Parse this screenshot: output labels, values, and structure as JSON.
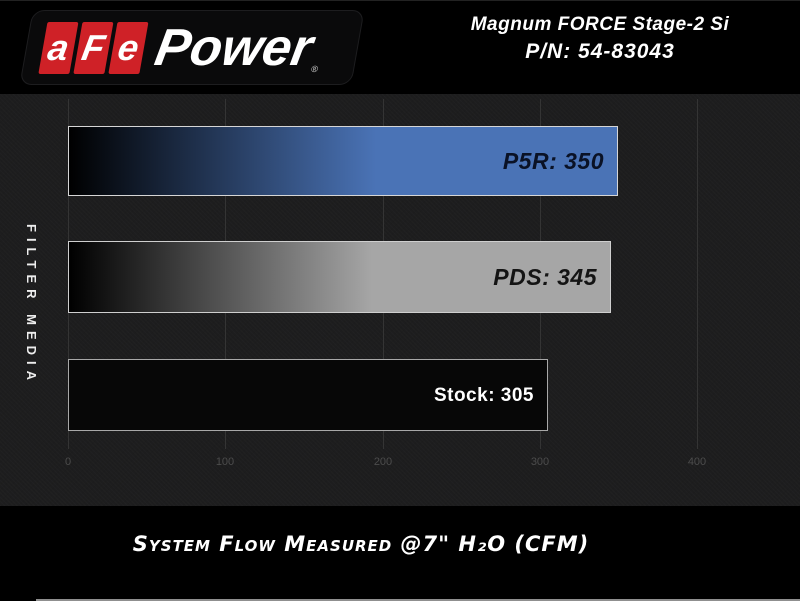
{
  "header": {
    "logo": {
      "blocks": [
        "a",
        "F",
        "e"
      ],
      "word": "Power",
      "registered": "®"
    },
    "title_line1": "Magnum FORCE Stage-2 Si",
    "title_line2": "P/N: 54-83043"
  },
  "chart_data": {
    "type": "bar",
    "orientation": "horizontal",
    "title": "",
    "ylabel": "FILTER MEDIA",
    "caption": "System Flow Measured @7\" H₂O (CFM)",
    "categories": [
      "P5R",
      "PDS",
      "Stock"
    ],
    "values": [
      350,
      345,
      305
    ],
    "xticks": [
      0,
      100,
      200,
      300,
      400
    ],
    "xlim": [
      0,
      440
    ],
    "grid": "vertical",
    "legend": "none",
    "bars": [
      {
        "id": "p5r",
        "name": "P5R",
        "value": 350,
        "label": "P5R: 350",
        "fill_from": "#000000",
        "fill_to": "#4a73b6",
        "border": "#d6d6d6",
        "label_color": "#0a1226",
        "label_italic": true
      },
      {
        "id": "pds",
        "name": "PDS",
        "value": 345,
        "label": "PDS: 345",
        "fill_from": "#000000",
        "fill_to": "#a6a6a6",
        "border": "#cfcfcf",
        "label_color": "#141414",
        "label_italic": true
      },
      {
        "id": "stock",
        "name": "Stock",
        "value": 305,
        "label": "Stock: 305",
        "fill_from": "#070707",
        "fill_to": "#070707",
        "border": "#a8a8a8",
        "label_color": "#ffffff",
        "label_italic": false
      }
    ],
    "colors": {
      "header_background": "#000000",
      "chart_background": "#1d1d1e",
      "grid_color": "#343434",
      "tick_color": "#4c4c4c",
      "bar_border": "#c9c9c9",
      "brand_red": "#cf2127",
      "accent_blue": "#4a73b6",
      "silver": "#a6a6a6"
    }
  }
}
